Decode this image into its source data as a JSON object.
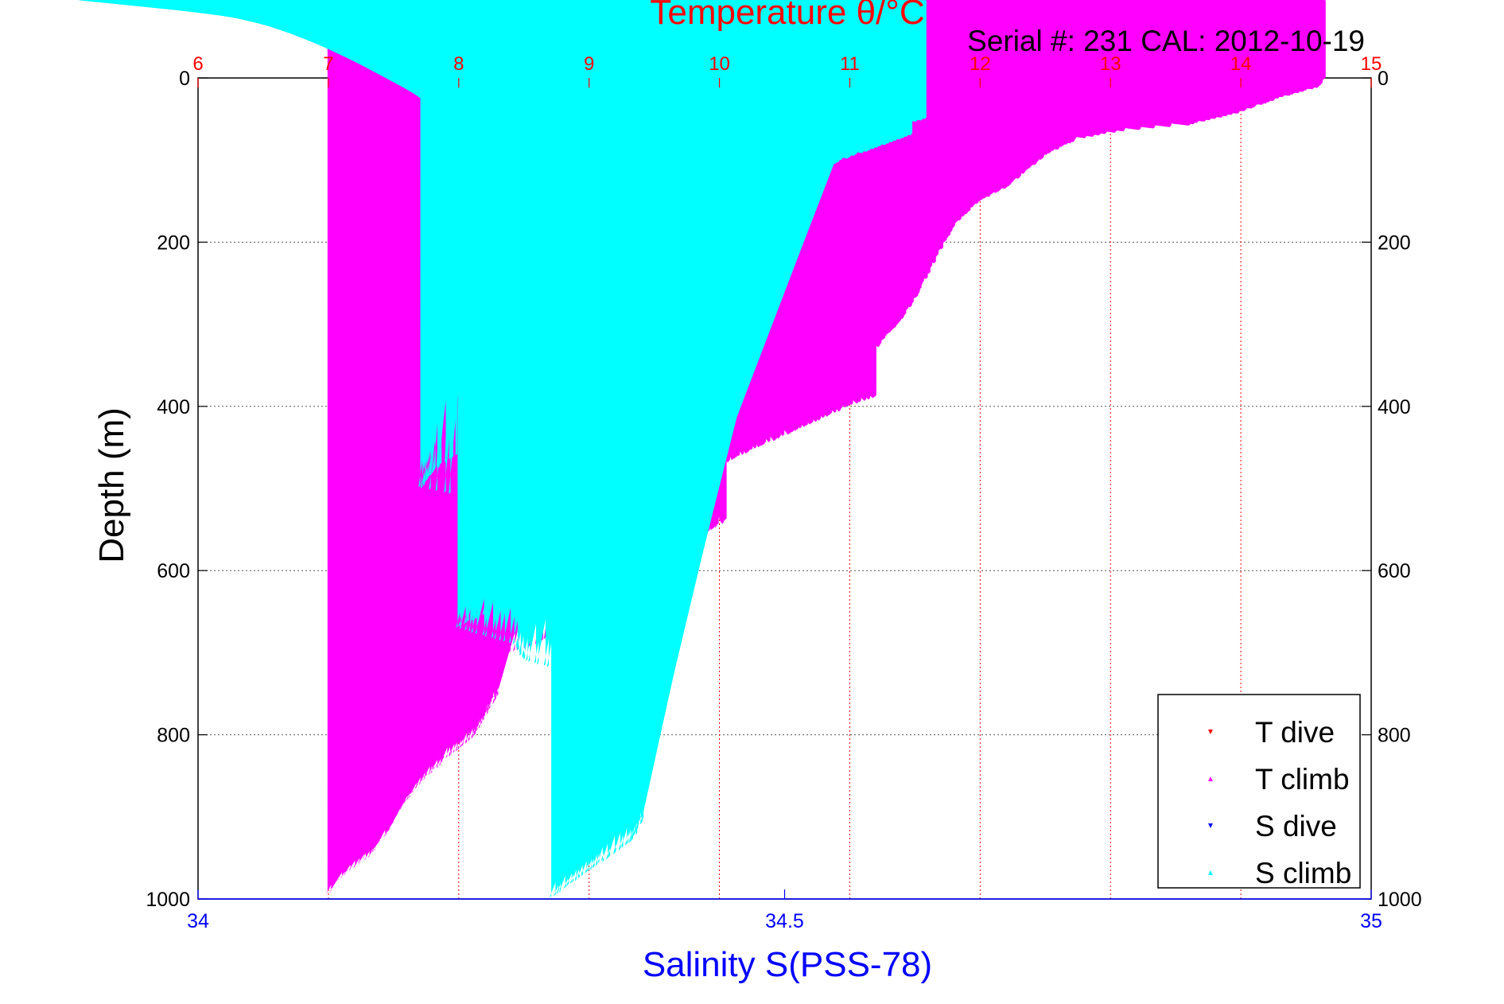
{
  "chart_data": {
    "type": "scatter",
    "title": "Temperature θ/°C",
    "subtitle": "Serial #: 231  CAL: 2012-10-19",
    "xlabel_top": "Temperature θ/°C",
    "xlabel_bottom": "Salinity S(PSS-78)",
    "ylabel": "Depth (m)",
    "y_reversed": true,
    "ylim": [
      0,
      1000
    ],
    "y_ticks": [
      0,
      200,
      400,
      600,
      800,
      1000
    ],
    "x_top": {
      "lim": [
        6,
        15
      ],
      "ticks": [
        6,
        7,
        8,
        9,
        10,
        11,
        12,
        13,
        14,
        15
      ],
      "color": "#ff0000",
      "grid": true
    },
    "x_bottom": {
      "lim": [
        34,
        35
      ],
      "ticks": [
        34,
        34.5,
        35
      ],
      "color": "#0000ff"
    },
    "grid_y": true,
    "legend": {
      "placement": "bottom-right",
      "entries": [
        "T dive",
        "T climb",
        "S dive",
        "S climb"
      ]
    },
    "series": [
      {
        "name": "T dive",
        "axis": "top",
        "color": "#ff0000",
        "marker": "triangle-down",
        "points": [
          [
            14.65,
            0
          ],
          [
            14.6,
            10
          ],
          [
            14.5,
            22
          ],
          [
            14.1,
            32
          ],
          [
            13.95,
            50
          ],
          [
            13.5,
            60
          ],
          [
            13.0,
            68
          ],
          [
            12.75,
            75
          ],
          [
            12.55,
            90
          ],
          [
            12.45,
            110
          ],
          [
            12.3,
            130
          ],
          [
            12.0,
            150
          ],
          [
            11.85,
            170
          ],
          [
            11.7,
            200
          ],
          [
            11.55,
            240
          ],
          [
            11.5,
            270
          ],
          [
            11.35,
            290
          ],
          [
            11.2,
            320
          ],
          [
            11.0,
            350
          ],
          [
            10.95,
            380
          ],
          [
            10.9,
            400
          ],
          [
            10.6,
            430
          ],
          [
            10.3,
            460
          ],
          [
            10.1,
            480
          ],
          [
            9.95,
            500
          ],
          [
            9.9,
            530
          ],
          [
            9.7,
            560
          ],
          [
            9.6,
            580
          ],
          [
            9.2,
            590
          ],
          [
            9.8,
            600
          ],
          [
            9.4,
            630
          ],
          [
            9.1,
            650
          ],
          [
            8.8,
            670
          ],
          [
            8.6,
            690
          ],
          [
            8.2,
            720
          ],
          [
            8.35,
            745
          ],
          [
            8.2,
            770
          ],
          [
            8.1,
            800
          ],
          [
            7.9,
            830
          ],
          [
            7.75,
            860
          ],
          [
            7.65,
            890
          ],
          [
            7.5,
            920
          ],
          [
            7.25,
            950
          ],
          [
            7.15,
            970
          ],
          [
            7.0,
            1000
          ]
        ]
      },
      {
        "name": "T climb",
        "axis": "top",
        "color": "#ff00ff",
        "marker": "triangle-up",
        "points": [
          [
            14.65,
            0
          ],
          [
            14.6,
            12
          ],
          [
            14.3,
            25
          ],
          [
            13.95,
            45
          ],
          [
            13.6,
            58
          ],
          [
            13.1,
            65
          ],
          [
            12.75,
            75
          ],
          [
            12.5,
            95
          ],
          [
            12.35,
            115
          ],
          [
            12.2,
            135
          ],
          [
            12.0,
            150
          ],
          [
            11.8,
            180
          ],
          [
            11.7,
            210
          ],
          [
            11.6,
            240
          ],
          [
            11.5,
            270
          ],
          [
            11.4,
            295
          ],
          [
            11.25,
            320
          ],
          [
            11.15,
            345
          ],
          [
            11.15,
            365
          ],
          [
            11.2,
            390
          ],
          [
            11.0,
            400
          ],
          [
            10.6,
            430
          ],
          [
            10.3,
            450
          ],
          [
            10.05,
            470
          ],
          [
            9.95,
            490
          ],
          [
            9.85,
            500
          ],
          [
            9.95,
            520
          ],
          [
            10.05,
            540
          ],
          [
            9.85,
            560
          ],
          [
            9.8,
            580
          ],
          [
            9.55,
            605
          ],
          [
            9.35,
            630
          ],
          [
            9.1,
            650
          ],
          [
            8.85,
            665
          ],
          [
            8.6,
            690
          ],
          [
            8.3,
            705
          ],
          [
            8.1,
            720
          ],
          [
            8.3,
            750
          ],
          [
            8.2,
            780
          ],
          [
            8.1,
            805
          ],
          [
            7.9,
            830
          ],
          [
            7.7,
            860
          ],
          [
            7.55,
            890
          ],
          [
            7.45,
            920
          ],
          [
            7.3,
            950
          ],
          [
            7.05,
            980
          ],
          [
            7.0,
            995
          ]
        ]
      },
      {
        "name": "S dive",
        "axis": "bottom",
        "color": "#0000ff",
        "marker": "triangle-down",
        "points": [
          [
            34.6,
            5
          ],
          [
            34.65,
            15
          ],
          [
            34.68,
            20
          ],
          [
            34.7,
            30
          ],
          [
            34.72,
            40
          ],
          [
            34.68,
            50
          ],
          [
            34.66,
            60
          ],
          [
            34.68,
            70
          ],
          [
            34.66,
            80
          ],
          [
            34.63,
            95
          ],
          [
            34.61,
            120
          ],
          [
            34.58,
            140
          ],
          [
            34.54,
            160
          ],
          [
            34.52,
            180
          ],
          [
            34.52,
            220
          ],
          [
            34.51,
            250
          ],
          [
            34.5,
            280
          ],
          [
            34.49,
            300
          ],
          [
            34.48,
            330
          ],
          [
            34.47,
            360
          ],
          [
            34.47,
            390
          ],
          [
            34.44,
            420
          ],
          [
            34.39,
            445
          ],
          [
            34.33,
            470
          ],
          [
            34.29,
            490
          ],
          [
            34.36,
            510
          ],
          [
            34.37,
            540
          ],
          [
            34.33,
            560
          ],
          [
            34.36,
            580
          ],
          [
            34.4,
            600
          ],
          [
            34.42,
            610
          ],
          [
            34.41,
            630
          ],
          [
            34.39,
            650
          ],
          [
            34.32,
            670
          ],
          [
            34.27,
            690
          ],
          [
            34.28,
            710
          ],
          [
            34.33,
            730
          ],
          [
            34.37,
            750
          ],
          [
            34.38,
            770
          ],
          [
            34.4,
            800
          ],
          [
            34.39,
            830
          ],
          [
            34.38,
            860
          ],
          [
            34.39,
            890
          ],
          [
            34.4,
            910
          ],
          [
            34.37,
            930
          ],
          [
            34.33,
            960
          ],
          [
            34.32,
            980
          ],
          [
            34.31,
            995
          ]
        ]
      },
      {
        "name": "S climb",
        "axis": "bottom",
        "color": "#00ffff",
        "marker": "triangle-up",
        "points": [
          [
            34.56,
            0
          ],
          [
            34.58,
            10
          ],
          [
            34.58,
            20
          ],
          [
            34.6,
            30
          ],
          [
            34.6,
            40
          ],
          [
            34.62,
            50
          ],
          [
            34.6,
            60
          ],
          [
            34.61,
            70
          ],
          [
            34.58,
            85
          ],
          [
            34.55,
            100
          ],
          [
            34.52,
            120
          ],
          [
            34.48,
            140
          ],
          [
            34.45,
            160
          ],
          [
            34.43,
            180
          ],
          [
            34.42,
            200
          ],
          [
            34.42,
            230
          ],
          [
            34.41,
            260
          ],
          [
            34.4,
            290
          ],
          [
            34.39,
            320
          ],
          [
            34.38,
            340
          ],
          [
            34.41,
            360
          ],
          [
            34.44,
            380
          ],
          [
            34.42,
            400
          ],
          [
            34.35,
            420
          ],
          [
            34.28,
            440
          ],
          [
            34.22,
            460
          ],
          [
            34.2,
            480
          ],
          [
            34.19,
            500
          ],
          [
            34.25,
            515
          ],
          [
            34.3,
            540
          ],
          [
            34.38,
            560
          ],
          [
            34.39,
            580
          ],
          [
            34.4,
            595
          ],
          [
            34.35,
            610
          ],
          [
            34.29,
            630
          ],
          [
            34.25,
            650
          ],
          [
            34.22,
            670
          ],
          [
            34.27,
            690
          ],
          [
            34.28,
            710
          ],
          [
            34.33,
            730
          ],
          [
            34.34,
            750
          ],
          [
            34.36,
            780
          ],
          [
            34.37,
            810
          ],
          [
            34.36,
            840
          ],
          [
            34.37,
            870
          ],
          [
            34.38,
            900
          ],
          [
            34.37,
            930
          ],
          [
            34.34,
            960
          ],
          [
            34.32,
            980
          ],
          [
            34.3,
            1000
          ]
        ]
      }
    ]
  }
}
